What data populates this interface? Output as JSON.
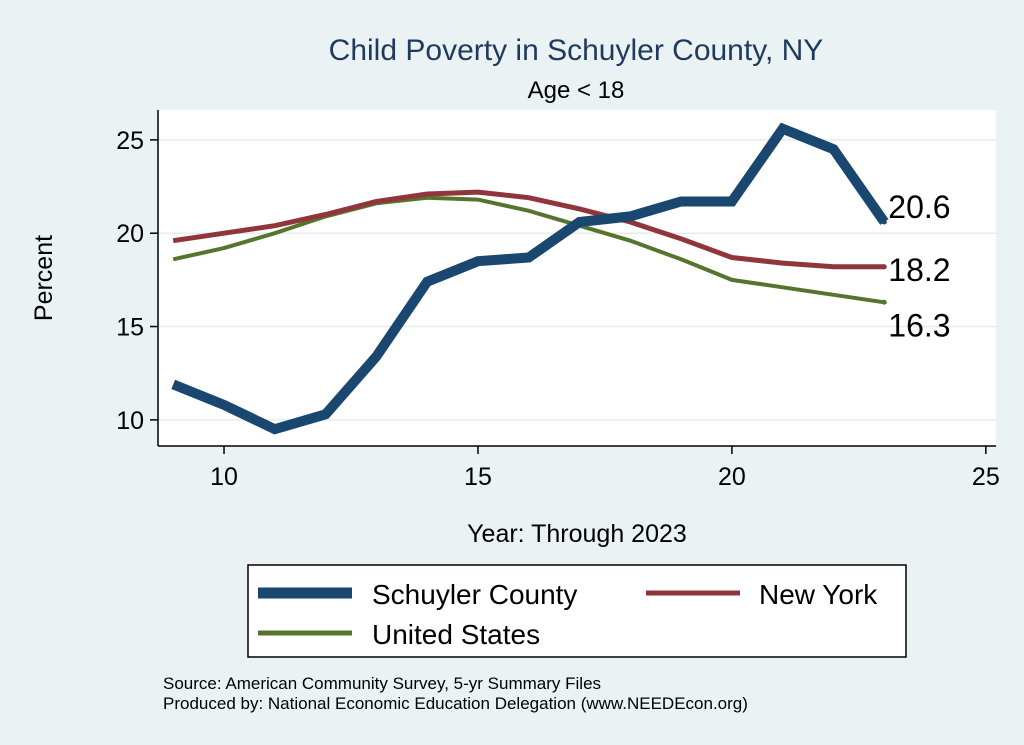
{
  "chart_data": {
    "type": "line",
    "title": "Child Poverty in Schuyler County, NY",
    "subtitle": "Age < 18",
    "xlabel": "Year: Through 2023",
    "ylabel": "Percent",
    "xlim": [
      8.7,
      25.2
    ],
    "ylim": [
      8.6,
      26.6
    ],
    "xticks": [
      10,
      15,
      20,
      25
    ],
    "yticks": [
      10,
      15,
      20,
      25
    ],
    "grid": true,
    "legend_position": "bottom",
    "series": [
      {
        "name": "Schuyler County",
        "color": "#1a476f",
        "x": [
          9,
          10,
          11,
          12,
          13,
          14,
          15,
          16,
          17,
          18,
          19,
          20,
          21,
          22,
          23
        ],
        "values": [
          11.9,
          10.8,
          9.5,
          10.3,
          13.4,
          17.4,
          18.5,
          18.7,
          20.6,
          20.9,
          21.7,
          21.7,
          25.6,
          24.5,
          20.6
        ],
        "end_label": "20.6"
      },
      {
        "name": "New York",
        "color": "#90353b",
        "x": [
          9,
          10,
          11,
          12,
          13,
          14,
          15,
          16,
          17,
          18,
          19,
          20,
          21,
          22,
          23
        ],
        "values": [
          19.6,
          20.0,
          20.4,
          21.0,
          21.7,
          22.1,
          22.2,
          21.9,
          21.3,
          20.6,
          19.7,
          18.7,
          18.4,
          18.2,
          18.2
        ],
        "end_label": "18.2"
      },
      {
        "name": "United States",
        "color": "#55752f",
        "x": [
          9,
          10,
          11,
          12,
          13,
          14,
          15,
          16,
          17,
          18,
          19,
          20,
          21,
          22,
          23
        ],
        "values": [
          18.6,
          19.2,
          20.0,
          20.9,
          21.6,
          21.9,
          21.8,
          21.2,
          20.4,
          19.6,
          18.6,
          17.5,
          17.1,
          16.7,
          16.3
        ],
        "end_label": "16.3"
      }
    ]
  },
  "source_lines": [
    "Source: American Community Survey, 5-yr Summary Files",
    "Produced by: National Economic Education Delegation (www.NEEDEcon.org)"
  ]
}
